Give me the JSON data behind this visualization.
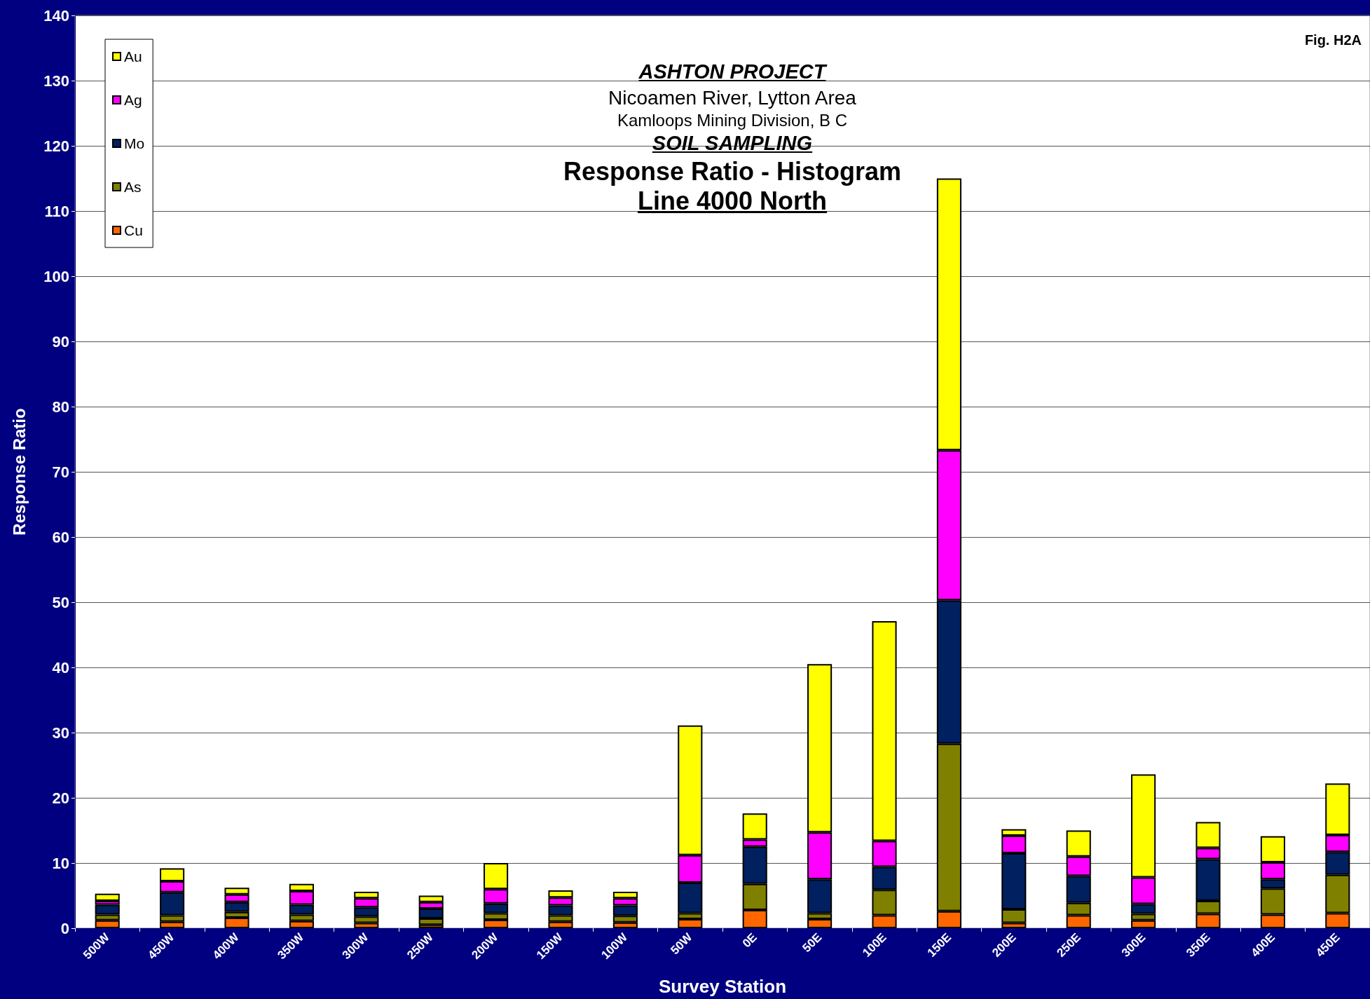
{
  "chart_data": {
    "type": "bar",
    "title": "ASHTON PROJECT",
    "subtitle": "Nicoamen River, Lytton Area\nKamloops Mining Division, B C",
    "annotations": [
      "SOIL SAMPLING",
      "Response Ratio - Histogram",
      "Line 4000 North",
      "Fig. H2A"
    ],
    "xlabel": "Survey Station",
    "ylabel": "Response Ratio",
    "categories": [
      "500W",
      "450W",
      "400W",
      "350W",
      "300W",
      "250W",
      "200W",
      "150W",
      "100W",
      "50W",
      "0E",
      "50E",
      "100E",
      "150E",
      "200E",
      "250E",
      "300E",
      "350E",
      "400E",
      "450E"
    ],
    "stacked": true,
    "series": [
      {
        "name": "Cu",
        "color": "#ff6600",
        "values": [
          1.2,
          1.0,
          1.6,
          1.1,
          0.8,
          0.5,
          1.3,
          1.0,
          0.9,
          1.4,
          2.8,
          1.4,
          2.0,
          2.6,
          0.8,
          2.0,
          1.2,
          2.2,
          2.1,
          2.3
        ]
      },
      {
        "name": "As",
        "color": "#808000",
        "values": [
          0.9,
          1.0,
          0.9,
          1.0,
          1.0,
          1.0,
          1.0,
          1.0,
          1.0,
          0.9,
          4.0,
          0.9,
          3.9,
          25.7,
          2.1,
          1.9,
          1.0,
          2.0,
          4.0,
          5.9
        ]
      },
      {
        "name": "Mo",
        "color": "#002060",
        "values": [
          1.5,
          3.5,
          1.5,
          1.5,
          1.4,
          1.5,
          1.5,
          1.5,
          1.6,
          4.7,
          5.7,
          5.2,
          3.5,
          22.0,
          8.6,
          4.1,
          1.5,
          6.4,
          1.4,
          3.5
        ]
      },
      {
        "name": "Ag",
        "color": "#ff00ff",
        "values": [
          0.6,
          1.7,
          1.2,
          2.1,
          1.4,
          1.0,
          2.2,
          1.2,
          1.1,
          4.2,
          1.1,
          7.2,
          4.0,
          23.0,
          2.7,
          3.0,
          4.1,
          1.7,
          2.6,
          2.6
        ]
      },
      {
        "name": "Au",
        "color": "#ffff00",
        "values": [
          1.1,
          2.0,
          1.0,
          1.1,
          1.0,
          1.0,
          4.0,
          1.1,
          1.0,
          19.9,
          4.0,
          25.8,
          33.7,
          41.7,
          1.0,
          4.0,
          15.8,
          4.0,
          4.0,
          7.9
        ]
      }
    ],
    "ylim": [
      0,
      140
    ],
    "yticks": [
      0,
      10,
      20,
      30,
      40,
      50,
      60,
      70,
      80,
      90,
      100,
      110,
      120,
      130,
      140
    ],
    "grid": "y",
    "legend": "top left"
  }
}
